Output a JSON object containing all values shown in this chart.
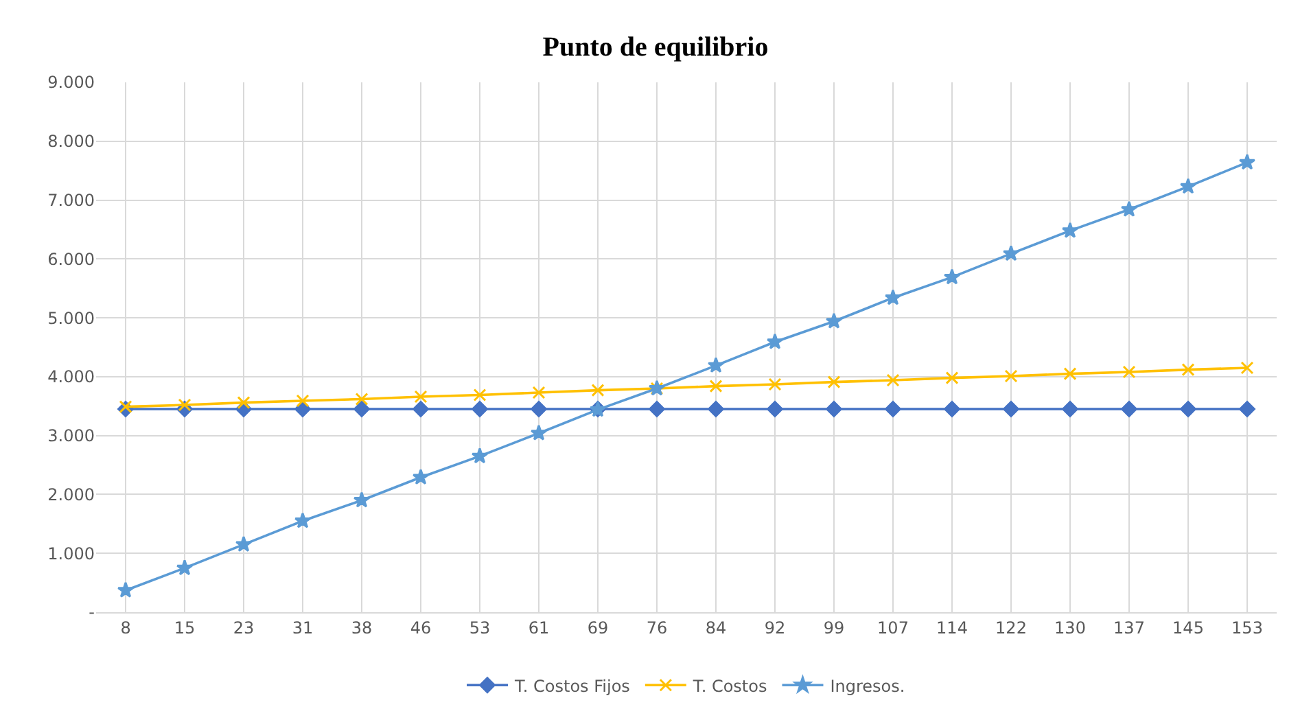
{
  "chart_data": {
    "type": "line",
    "title": "Punto de equilibrio",
    "categories": [
      "8",
      "15",
      "23",
      "31",
      "38",
      "46",
      "53",
      "61",
      "69",
      "76",
      "84",
      "92",
      "99",
      "107",
      "114",
      "122",
      "130",
      "137",
      "145",
      "153"
    ],
    "series": [
      {
        "name": "T. Costos Fijos",
        "color": "#4472c4",
        "marker": "diamond",
        "values": [
          3450,
          3450,
          3450,
          3450,
          3450,
          3450,
          3450,
          3450,
          3450,
          3450,
          3450,
          3450,
          3450,
          3450,
          3450,
          3450,
          3450,
          3450,
          3450,
          3450
        ]
      },
      {
        "name": "T. Costos",
        "color": "#ffc000",
        "marker": "cross",
        "values": [
          3490,
          3520,
          3560,
          3590,
          3620,
          3660,
          3690,
          3730,
          3770,
          3800,
          3840,
          3870,
          3910,
          3940,
          3980,
          4010,
          4050,
          4080,
          4120,
          4150
        ]
      },
      {
        "name": "Ingresos.",
        "color": "#5b9bd5",
        "marker": "star",
        "values": [
          370,
          750,
          1150,
          1550,
          1900,
          2290,
          2650,
          3040,
          3440,
          3800,
          4190,
          4590,
          4940,
          5340,
          5690,
          6090,
          6480,
          6840,
          7230,
          7640
        ]
      }
    ],
    "ylim": [
      0,
      9000
    ],
    "yticks": [
      {
        "value": 0,
        "label": "-"
      },
      {
        "value": 1000,
        "label": "1.000"
      },
      {
        "value": 2000,
        "label": "2.000"
      },
      {
        "value": 3000,
        "label": "3.000"
      },
      {
        "value": 4000,
        "label": "4.000"
      },
      {
        "value": 5000,
        "label": "5.000"
      },
      {
        "value": 6000,
        "label": "6.000"
      },
      {
        "value": 7000,
        "label": "7.000"
      },
      {
        "value": 8000,
        "label": "8.000"
      },
      {
        "value": 9000,
        "label": "9.000"
      }
    ],
    "grid": true,
    "legend": "bottom",
    "line_style": "solid"
  }
}
